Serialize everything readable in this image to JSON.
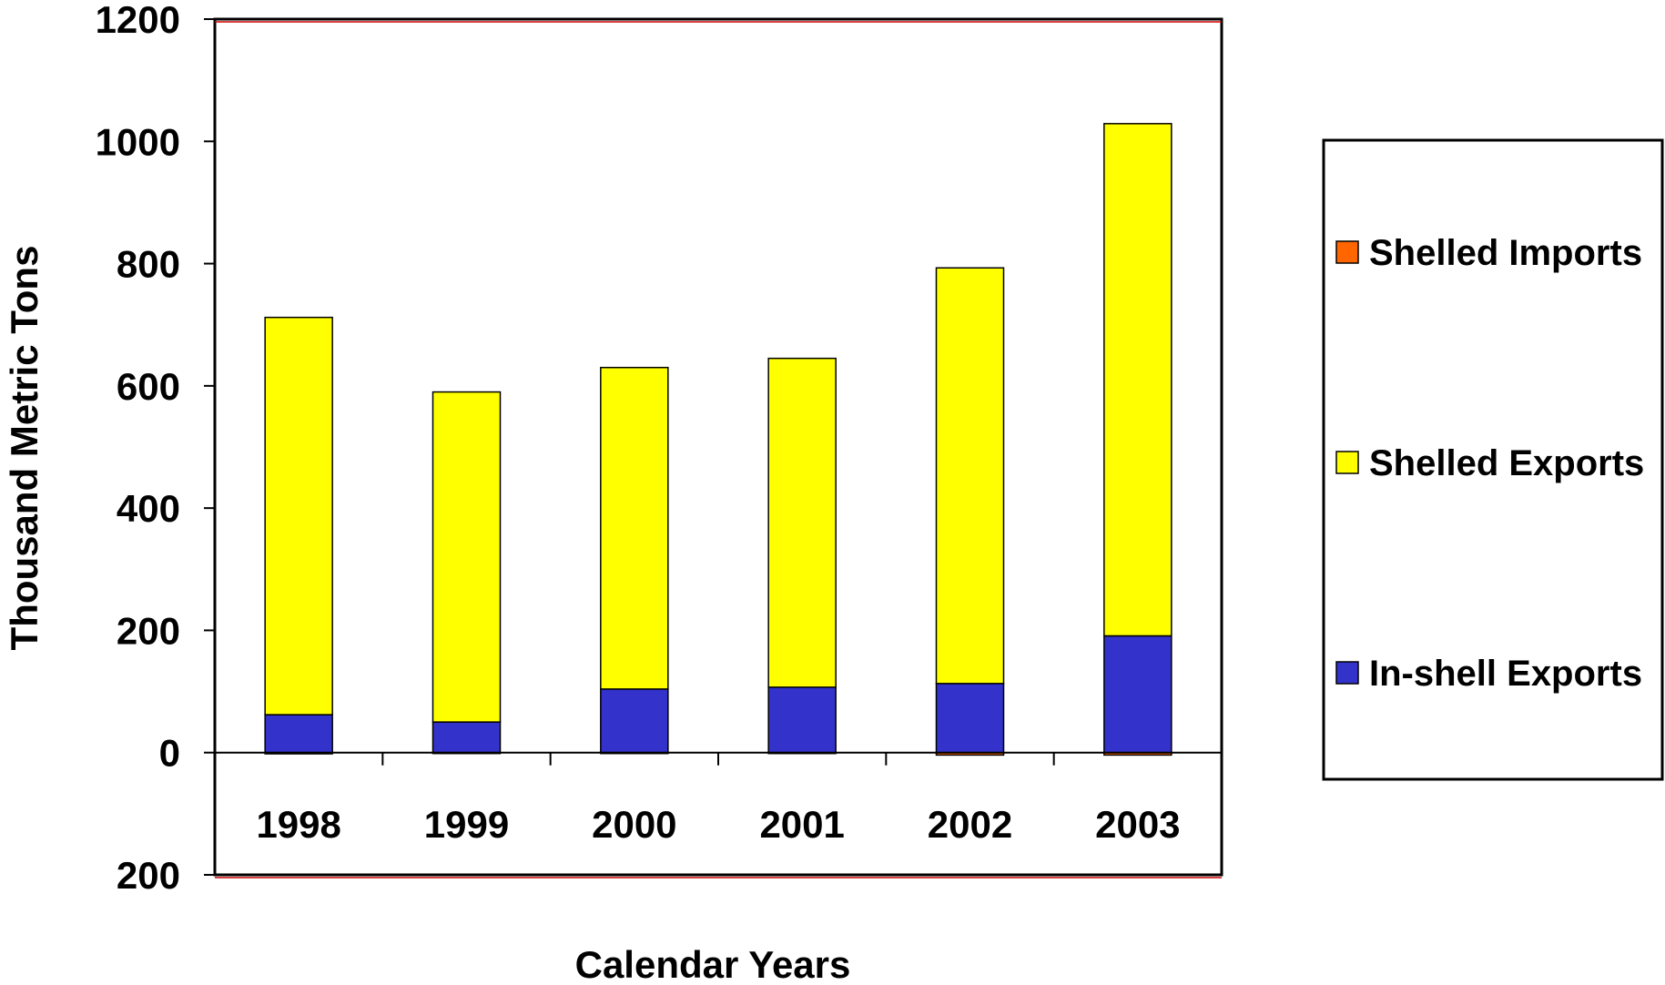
{
  "chart_data": {
    "type": "bar",
    "stacked": true,
    "categories": [
      "1998",
      "1999",
      "2000",
      "2001",
      "2002",
      "2003"
    ],
    "series": [
      {
        "name": "In-shell Exports",
        "color": "#3333cc",
        "values": [
          62,
          50,
          104,
          107,
          113,
          191
        ]
      },
      {
        "name": "Shelled Exports",
        "color": "#ffff00",
        "values": [
          650,
          540,
          526,
          538,
          680,
          838
        ]
      },
      {
        "name": "Shelled Imports",
        "color": "#ff6600",
        "values": [
          -2,
          -1,
          -1,
          -1,
          -4,
          -4
        ]
      }
    ],
    "legend_order": [
      "Shelled Imports",
      "Shelled Exports",
      "In-shell Exports"
    ],
    "legend_position": "right",
    "xlabel": "Calendar Years",
    "ylabel": "Thousand Metric Tons",
    "ylim": [
      -200,
      1200
    ],
    "yticks": [
      {
        "value": 1200,
        "label": "1200",
        "color": "#000000"
      },
      {
        "value": 1000,
        "label": "1000",
        "color": "#000000"
      },
      {
        "value": 800,
        "label": "800",
        "color": "#000000"
      },
      {
        "value": 600,
        "label": "600",
        "color": "#000000"
      },
      {
        "value": 400,
        "label": "400",
        "color": "#000000"
      },
      {
        "value": 200,
        "label": "200",
        "color": "#000000"
      },
      {
        "value": 0,
        "label": "0",
        "color": "#000000"
      },
      {
        "value": -200,
        "label": "200",
        "color": "#ff0000"
      }
    ],
    "grid": false
  }
}
